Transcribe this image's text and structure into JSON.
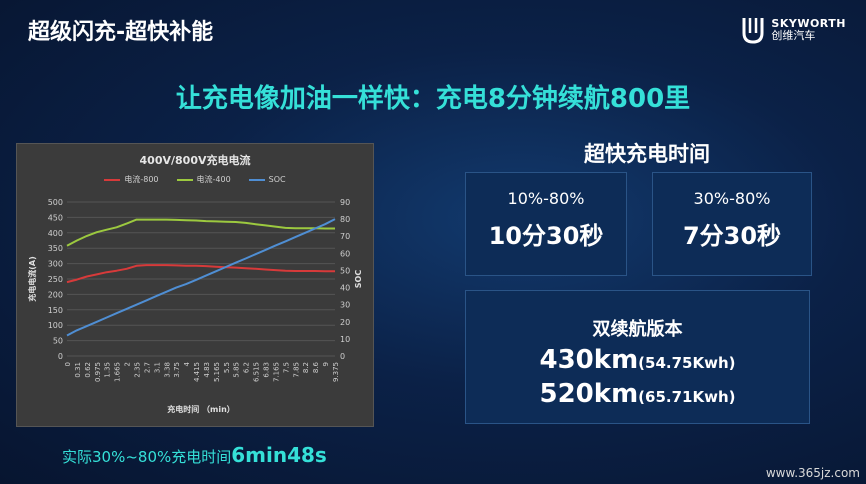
{
  "slide": {
    "title": "超级闪充-超快补能",
    "headline": "让充电像加油一样快：充电8分钟续航800里"
  },
  "brand": {
    "name_en": "SKYWORTH",
    "name_cn": "创维汽车"
  },
  "right_panel": {
    "title": "超快充电时间",
    "cards": [
      {
        "range": "10%-80%",
        "time": "10分30秒"
      },
      {
        "range": "30%-80%",
        "time": "7分30秒"
      }
    ],
    "version": {
      "title": "双续航版本",
      "lines": [
        {
          "km": "430km",
          "kwh": "(54.75Kwh)"
        },
        {
          "km": "520km",
          "kwh": "(65.71Kwh)"
        }
      ]
    }
  },
  "note": {
    "prefix": "实际30%~80%充电时间",
    "value": "6min48s"
  },
  "watermark": "www.365jz.com",
  "chart_data": {
    "type": "line",
    "title": "400V/800V充电电流",
    "xlabel": "充电时间 （min）",
    "ylabel": "充电电流(A)",
    "y2label": "SOC",
    "x": [
      "0",
      "0.31",
      "0.62",
      "0.975",
      "1.35",
      "1.665",
      "2",
      "2.35",
      "2.7",
      "3.1",
      "3.38",
      "3.75",
      "4",
      "4.415",
      "4.83",
      "5.165",
      "5.5",
      "5.85",
      "6.2",
      "6.515",
      "6.83",
      "7.165",
      "7.5",
      "7.85",
      "8.2",
      "8.6",
      "9",
      "9.375"
    ],
    "ylim": [
      0,
      500
    ],
    "y2lim": [
      0,
      90
    ],
    "yticks": [
      "0",
      "50",
      "100",
      "150",
      "200",
      "250",
      "300",
      "350",
      "400",
      "450",
      "500"
    ],
    "y2ticks": [
      "0",
      "10",
      "20",
      "30",
      "40",
      "50",
      "60",
      "70",
      "80",
      "90"
    ],
    "series": [
      {
        "name": "电流-800",
        "axis": "left",
        "color": "#d73a3a",
        "values": [
          240,
          248,
          258,
          265,
          272,
          277,
          283,
          293,
          295,
          295,
          295,
          294,
          293,
          293,
          292,
          290,
          288,
          287,
          285,
          283,
          281,
          279,
          277,
          276,
          276,
          276,
          275,
          275
        ]
      },
      {
        "name": "电流-400",
        "axis": "left",
        "color": "#9cc93f",
        "values": [
          358,
          375,
          390,
          402,
          410,
          418,
          430,
          443,
          443,
          443,
          443,
          442,
          441,
          440,
          438,
          437,
          436,
          435,
          432,
          428,
          424,
          420,
          416,
          415,
          415,
          415,
          414,
          414
        ]
      },
      {
        "name": "SOC",
        "axis": "right",
        "color": "#4f8ed3",
        "values": [
          12,
          15,
          17.5,
          20,
          22.5,
          25,
          27.5,
          30,
          32.5,
          35,
          37.5,
          40,
          42,
          44.5,
          47,
          49.5,
          52,
          54.5,
          57,
          59.5,
          62,
          64.5,
          67,
          69.5,
          72,
          74.5,
          77,
          80
        ]
      }
    ],
    "legend_position": "top",
    "grid": true
  }
}
